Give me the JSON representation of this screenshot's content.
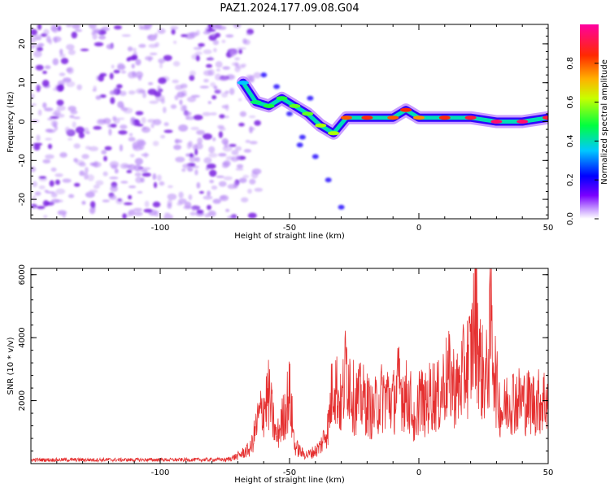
{
  "title": "PAZ1.2024.177.09.08.G04",
  "colors": {
    "snr_line": "#e53030",
    "speckle": "#b98cf5",
    "speckle_dark": "#7a22e0",
    "ridge_core": "#ff2a2a"
  },
  "chart_data": [
    {
      "type": "heatmap",
      "xlabel": "Height of straight line (km)",
      "ylabel": "Frequency (Hz)",
      "xlim": [
        -150,
        50
      ],
      "ylim": [
        -25,
        25
      ],
      "xticks": [
        -100,
        -50,
        0,
        50
      ],
      "yticks": [
        -20,
        -10,
        0,
        10,
        20
      ],
      "colorbar": {
        "label": "Normalized spectral amplitude",
        "range": [
          0,
          1
        ],
        "ticks": [
          "0.0",
          "0.2",
          "0.4",
          "0.6",
          "0.8"
        ],
        "colormap": "rainbow (white-violet-blue-cyan-green-yellow-red-magenta)"
      },
      "ridge": {
        "description": "dominant frequency track",
        "x": [
          -68,
          -63,
          -58,
          -53,
          -48,
          -43,
          -38,
          -33,
          -28,
          -20,
          -10,
          -5,
          0,
          10,
          20,
          30,
          40,
          50
        ],
        "y": [
          10,
          5,
          4,
          6,
          4,
          2,
          -1,
          -3,
          1,
          1,
          1,
          3,
          1,
          1,
          1,
          0,
          0,
          1
        ],
        "amplitude": [
          0.35,
          0.45,
          0.5,
          0.5,
          0.55,
          0.55,
          0.6,
          0.6,
          0.8,
          0.85,
          0.8,
          0.85,
          0.75,
          0.85,
          0.9,
          0.95,
          0.95,
          0.9
        ]
      },
      "noise_region_x": [
        -150,
        -70
      ]
    },
    {
      "type": "line",
      "xlabel": "Height of straight line (km)",
      "ylabel": "SNR (10 * v/v)",
      "xlim": [
        -150,
        50
      ],
      "ylim": [
        0,
        6200
      ],
      "xticks": [
        -100,
        -50,
        0,
        50
      ],
      "yticks": [
        2000,
        4000,
        6000
      ],
      "series": [
        {
          "x": [
            -150,
            -120,
            -90,
            -75,
            -70,
            -65,
            -62,
            -58,
            -56,
            -55,
            -52,
            -50,
            -48,
            -45,
            -43,
            -40,
            -38,
            -35,
            -33,
            -30,
            -28,
            -25,
            -22,
            -20,
            -18,
            -15,
            -12,
            -10,
            -8,
            -5,
            -3,
            0,
            -1,
            2,
            5,
            8,
            10,
            12,
            15,
            18,
            20,
            22,
            24,
            26,
            28,
            30,
            32,
            35,
            40,
            45,
            50
          ],
          "y": [
            120,
            120,
            120,
            130,
            300,
            600,
            1800,
            2700,
            1500,
            1000,
            2000,
            2800,
            700,
            400,
            350,
            500,
            700,
            1500,
            3500,
            2200,
            4000,
            2500,
            2600,
            2400,
            2000,
            2600,
            2700,
            2400,
            3100,
            2700,
            2400,
            3000,
            1000,
            2200,
            2800,
            2600,
            3300,
            3400,
            2900,
            3800,
            4200,
            6100,
            3700,
            3300,
            5500,
            3000,
            2000,
            2600,
            2500,
            2400,
            2600
          ]
        }
      ]
    }
  ]
}
